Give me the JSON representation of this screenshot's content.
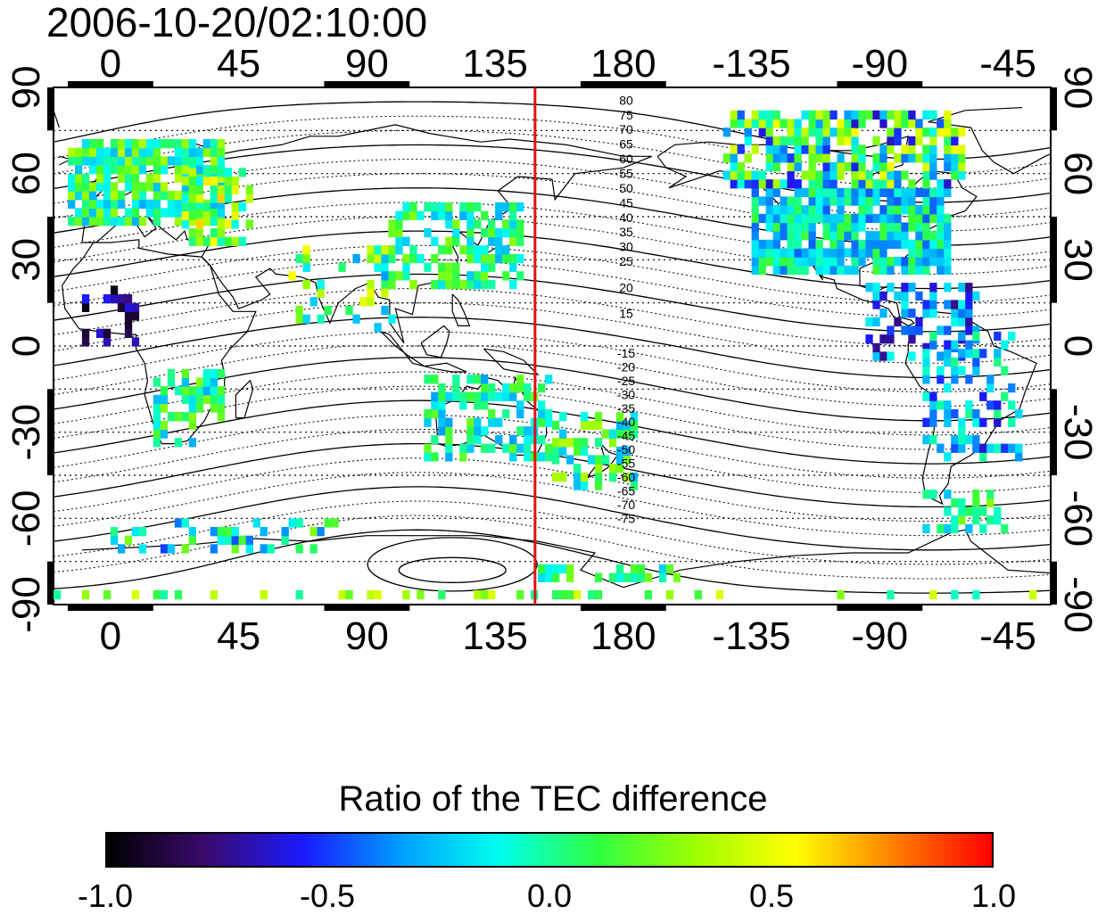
{
  "title": "2006-10-20/02:10:00",
  "map": {
    "lon_labels": [
      "0",
      "45",
      "90",
      "135",
      "180",
      "-135",
      "-90",
      "-45"
    ],
    "lat_labels": [
      "90",
      "60",
      "30",
      "0",
      "-30",
      "-60",
      "-90"
    ],
    "lon_range": [
      -20,
      330
    ],
    "lat_range": [
      -90,
      90
    ],
    "meridian_line": {
      "lon": 149,
      "color": "#e01010"
    },
    "contour_labels_north": [
      "80",
      "75",
      "70",
      "65",
      "60",
      "55",
      "50",
      "45",
      "40",
      "35",
      "30",
      "25",
      "20",
      "15"
    ],
    "contour_labels_south": [
      "-15",
      "-20",
      "-25",
      "-30",
      "-35",
      "-40",
      "-45",
      "-50",
      "-55",
      "-60",
      "-65",
      "-70",
      "-75"
    ]
  },
  "colorbar": {
    "title": "Ratio of the TEC difference",
    "min": -1.0,
    "max": 1.0,
    "tick_labels": [
      "-1.0",
      "-0.5",
      "0.0",
      "0.5",
      "1.0"
    ],
    "colors": [
      "#000000",
      "#3a0a6e",
      "#1a1aff",
      "#00a0ff",
      "#00ffee",
      "#30ff40",
      "#a0ff00",
      "#ffff00",
      "#ff8000",
      "#ff0000"
    ]
  }
}
